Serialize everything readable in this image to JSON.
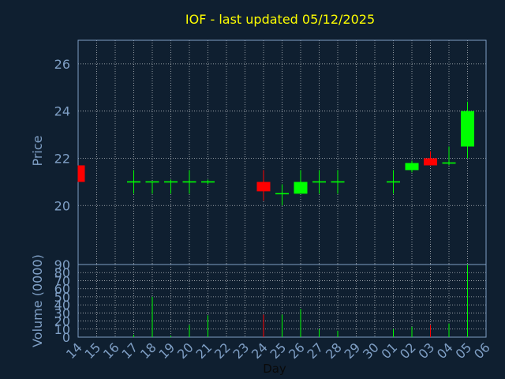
{
  "chart_data": {
    "type": "candlestick",
    "title": "IOF - last updated 05/12/2025",
    "xlabel": "Day",
    "price_ylabel": "Price",
    "volume_ylabel": "Volume (0000)",
    "x_tick_labels": [
      "14",
      "15",
      "16",
      "17",
      "18",
      "19",
      "20",
      "21",
      "22",
      "23",
      "24",
      "25",
      "26",
      "27",
      "28",
      "29",
      "30",
      "01",
      "02",
      "03",
      "04",
      "05",
      "06"
    ],
    "price_ylim": [
      17.5,
      27
    ],
    "price_ticks": [
      "20",
      "22",
      "24",
      "26"
    ],
    "price_tick_values": [
      20,
      22,
      24,
      26
    ],
    "volume_ylim": [
      0,
      90
    ],
    "volume_ticks": [
      "0",
      "10",
      "20",
      "30",
      "40",
      "50",
      "60",
      "70",
      "80",
      "90"
    ],
    "volume_tick_values": [
      0,
      10,
      20,
      30,
      40,
      50,
      60,
      70,
      80,
      90
    ],
    "grid": true,
    "colors": {
      "background": "#0f1f30",
      "title": "#ffff00",
      "axis_text": "#7f9fc5",
      "grid": "#ffffff",
      "up": "#00ff00",
      "down": "#ff0000",
      "flat": "#00ff00"
    },
    "candles": [
      {
        "day": "14",
        "open": 21.7,
        "high": 21.7,
        "low": 21.0,
        "close": 21.0,
        "volume": 0,
        "dir": "down"
      },
      {
        "day": "17",
        "open": 21.0,
        "high": 21.5,
        "low": 20.5,
        "close": 21.0,
        "volume": 3,
        "dir": "flat"
      },
      {
        "day": "18",
        "open": 21.0,
        "high": 21.0,
        "low": 20.5,
        "close": 21.0,
        "volume": 50,
        "dir": "flat"
      },
      {
        "day": "19",
        "open": 21.0,
        "high": 21.1,
        "low": 20.5,
        "close": 21.0,
        "volume": 2,
        "dir": "flat"
      },
      {
        "day": "20",
        "open": 21.0,
        "high": 21.5,
        "low": 20.5,
        "close": 21.0,
        "volume": 15,
        "dir": "flat"
      },
      {
        "day": "21",
        "open": 21.0,
        "high": 21.1,
        "low": 20.9,
        "close": 21.0,
        "volume": 27,
        "dir": "flat"
      },
      {
        "day": "24",
        "open": 21.0,
        "high": 21.5,
        "low": 20.2,
        "close": 20.6,
        "volume": 28,
        "dir": "down"
      },
      {
        "day": "25",
        "open": 20.5,
        "high": 20.9,
        "low": 20.0,
        "close": 20.5,
        "volume": 28,
        "dir": "flat"
      },
      {
        "day": "26",
        "open": 20.5,
        "high": 21.5,
        "low": 20.5,
        "close": 21.0,
        "volume": 35,
        "dir": "up"
      },
      {
        "day": "27",
        "open": 21.0,
        "high": 21.5,
        "low": 20.5,
        "close": 21.0,
        "volume": 10,
        "dir": "flat"
      },
      {
        "day": "28",
        "open": 21.0,
        "high": 21.5,
        "low": 20.5,
        "close": 21.0,
        "volume": 8,
        "dir": "flat"
      },
      {
        "day": "01",
        "open": 21.0,
        "high": 21.5,
        "low": 20.5,
        "close": 21.0,
        "volume": 10,
        "dir": "flat"
      },
      {
        "day": "02",
        "open": 21.5,
        "high": 21.9,
        "low": 21.4,
        "close": 21.8,
        "volume": 13,
        "dir": "up"
      },
      {
        "day": "03",
        "open": 22.0,
        "high": 22.3,
        "low": 21.7,
        "close": 21.7,
        "volume": 15,
        "dir": "down"
      },
      {
        "day": "04",
        "open": 21.8,
        "high": 22.5,
        "low": 21.7,
        "close": 21.8,
        "volume": 17,
        "dir": "flat"
      },
      {
        "day": "05",
        "open": 22.5,
        "high": 24.4,
        "low": 22.0,
        "close": 24.0,
        "volume": 90,
        "dir": "up"
      }
    ]
  }
}
